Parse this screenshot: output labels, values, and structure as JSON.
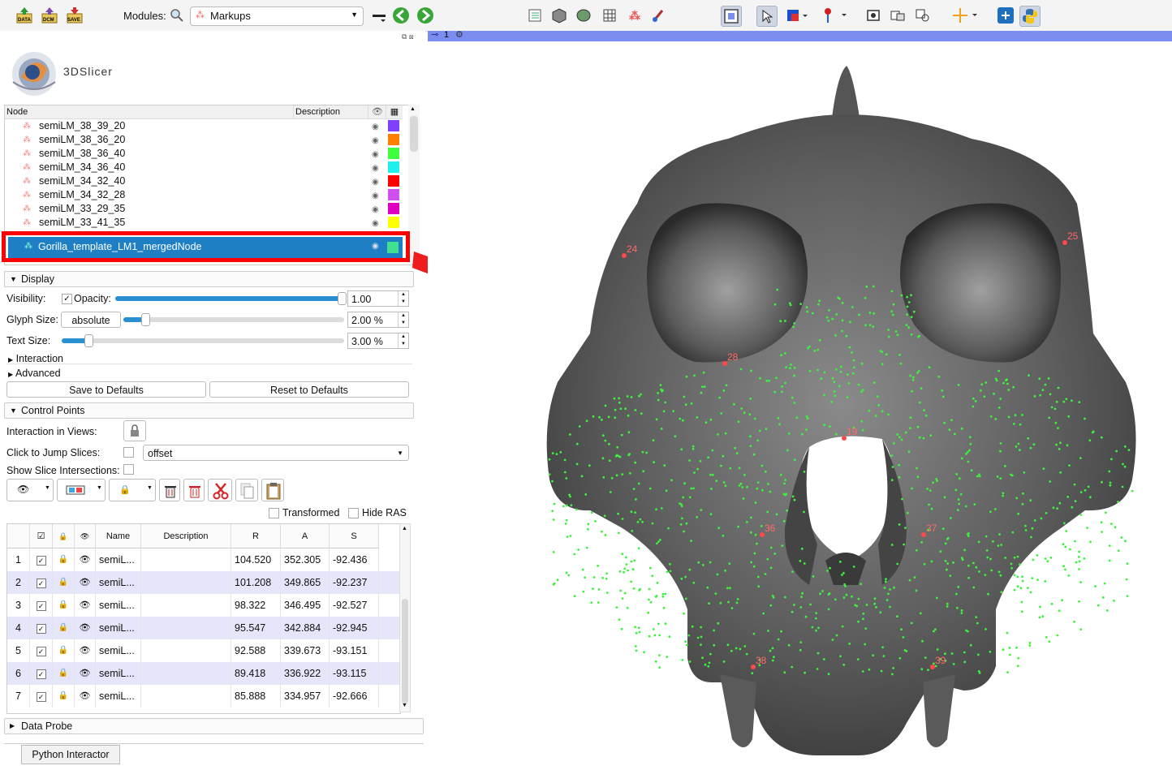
{
  "toolbar": {
    "data_btn": "DATA",
    "dcm_btn": "DCM",
    "save_btn": "SAVE",
    "modules_label": "Modules:",
    "module_selected": "Markups"
  },
  "view": {
    "number": "1",
    "landmarks": [
      {
        "label": "24"
      },
      {
        "label": "25"
      },
      {
        "label": "28"
      },
      {
        "label": "19"
      },
      {
        "label": "36"
      },
      {
        "label": "37"
      },
      {
        "label": "38"
      },
      {
        "label": "39"
      }
    ]
  },
  "logo": {
    "text": "3DSlicer"
  },
  "tree": {
    "header": {
      "node": "Node",
      "description": "Description"
    },
    "rows": [
      {
        "label": "semiLM_38_39_20",
        "color": "#7f3fff"
      },
      {
        "label": "semiLM_38_36_20",
        "color": "#ff7f00"
      },
      {
        "label": "semiLM_38_36_40",
        "color": "#3fff3f"
      },
      {
        "label": "semiLM_34_36_40",
        "color": "#1fefef"
      },
      {
        "label": "semiLM_34_32_40",
        "color": "#ff0000"
      },
      {
        "label": "semiLM_34_32_28",
        "color": "#cf4fef"
      },
      {
        "label": "semiLM_33_29_35",
        "color": "#e000c0"
      },
      {
        "label": "semiLM_33_41_35",
        "color": "#ffff00"
      }
    ],
    "selected": {
      "label": "Gorilla_template_LM1_mergedNode",
      "color": "#3fe08f"
    }
  },
  "display": {
    "title": "Display",
    "visibility_label": "Visibility:",
    "opacity_label": "Opacity:",
    "opacity_value": "1.00",
    "opacity_fraction": 1.0,
    "glyph_label": "Glyph Size:",
    "glyph_mode": "absolute",
    "glyph_value": "2.00 %",
    "glyph_fraction": 0.02,
    "text_label": "Text Size:",
    "text_value": "3.00 %",
    "text_fraction": 0.03,
    "interaction": "Interaction",
    "advanced": "Advanced",
    "save_defaults": "Save to Defaults",
    "reset_defaults": "Reset to Defaults"
  },
  "control_points": {
    "title": "Control Points",
    "interaction_label": "Interaction in Views:",
    "jump_label": "Click to Jump Slices:",
    "jump_mode": "offset",
    "intersections_label": "Show Slice Intersections:",
    "transformed": "Transformed",
    "hide_ras": "Hide RAS",
    "columns": [
      "Name",
      "Description",
      "R",
      "A",
      "S"
    ],
    "rows": [
      {
        "idx": "1",
        "name": "semiL...",
        "r": "104.520",
        "a": "352.305",
        "s": "-92.436"
      },
      {
        "idx": "2",
        "name": "semiL...",
        "r": "101.208",
        "a": "349.865",
        "s": "-92.237"
      },
      {
        "idx": "3",
        "name": "semiL...",
        "r": "98.322",
        "a": "346.495",
        "s": "-92.527"
      },
      {
        "idx": "4",
        "name": "semiL...",
        "r": "95.547",
        "a": "342.884",
        "s": "-92.945"
      },
      {
        "idx": "5",
        "name": "semiL...",
        "r": "92.588",
        "a": "339.673",
        "s": "-93.151"
      },
      {
        "idx": "6",
        "name": "semiL...",
        "r": "89.418",
        "a": "336.922",
        "s": "-93.115"
      },
      {
        "idx": "7",
        "name": "semiL...",
        "r": "85.888",
        "a": "334.957",
        "s": "-92.666"
      }
    ]
  },
  "data_probe": "Data Probe",
  "python_tab": "Python Interactor"
}
